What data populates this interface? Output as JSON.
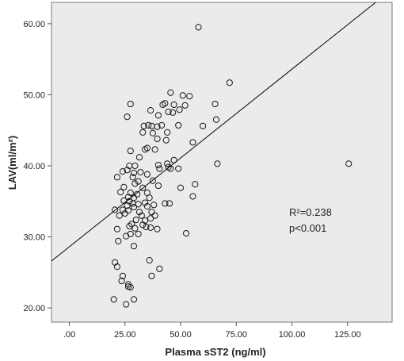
{
  "chart_data": {
    "type": "scatter",
    "xlabel": "Plasma sST2 (ng/ml)",
    "ylabel": "LAV(ml/m²)",
    "xlim": [
      -8,
      145
    ],
    "ylim": [
      18,
      63
    ],
    "x_ticks": [
      {
        "value": 0,
        "label": ".00"
      },
      {
        "value": 25,
        "label": "25.00"
      },
      {
        "value": 50,
        "label": "50.00"
      },
      {
        "value": 75,
        "label": "75.00"
      },
      {
        "value": 100,
        "label": "100.00"
      },
      {
        "value": 125,
        "label": "125.00"
      }
    ],
    "y_ticks": [
      {
        "value": 20,
        "label": "20.00"
      },
      {
        "value": 30,
        "label": "30.00"
      },
      {
        "value": 40,
        "label": "40.00"
      },
      {
        "value": 50,
        "label": "50.00"
      },
      {
        "value": 60,
        "label": "60.00"
      }
    ],
    "plot_background": "#ebebeb",
    "marker": "open-circle",
    "grid": false,
    "fit_line": {
      "intercept": 28.6,
      "slope": 0.25,
      "label": "R²=0.238",
      "p_label": "p<0.001"
    },
    "points": [
      [
        58.0,
        59.5
      ],
      [
        72.0,
        51.7
      ],
      [
        125.5,
        40.3
      ],
      [
        45.5,
        50.3
      ],
      [
        51.0,
        49.9
      ],
      [
        54.0,
        49.8
      ],
      [
        43.0,
        48.8
      ],
      [
        42.0,
        48.6
      ],
      [
        47.0,
        48.6
      ],
      [
        65.5,
        48.7
      ],
      [
        52.0,
        48.5
      ],
      [
        27.5,
        48.7
      ],
      [
        49.5,
        47.9
      ],
      [
        36.5,
        47.8
      ],
      [
        44.5,
        47.6
      ],
      [
        46.5,
        47.5
      ],
      [
        26.0,
        46.9
      ],
      [
        40.0,
        47.1
      ],
      [
        66.0,
        46.5
      ],
      [
        33.5,
        45.6
      ],
      [
        35.5,
        45.7
      ],
      [
        37.0,
        45.6
      ],
      [
        41.5,
        45.7
      ],
      [
        39.5,
        45.5
      ],
      [
        49.0,
        45.7
      ],
      [
        60.0,
        45.6
      ],
      [
        33.0,
        44.7
      ],
      [
        37.5,
        44.6
      ],
      [
        44.0,
        44.7
      ],
      [
        39.5,
        43.8
      ],
      [
        43.5,
        43.6
      ],
      [
        55.5,
        43.3
      ],
      [
        35.0,
        42.5
      ],
      [
        38.5,
        42.3
      ],
      [
        34.0,
        42.3
      ],
      [
        27.5,
        42.1
      ],
      [
        31.5,
        41.2
      ],
      [
        47.0,
        40.8
      ],
      [
        66.5,
        40.3
      ],
      [
        27.0,
        40.0
      ],
      [
        29.5,
        40.0
      ],
      [
        40.0,
        40.1
      ],
      [
        44.0,
        40.3
      ],
      [
        40.5,
        39.6
      ],
      [
        44.5,
        39.8
      ],
      [
        45.5,
        39.6
      ],
      [
        49.0,
        39.6
      ],
      [
        24.0,
        39.2
      ],
      [
        26.0,
        39.4
      ],
      [
        29.0,
        39.0
      ],
      [
        32.0,
        39.1
      ],
      [
        35.0,
        38.8
      ],
      [
        21.5,
        38.4
      ],
      [
        28.5,
        38.4
      ],
      [
        31.0,
        37.8
      ],
      [
        37.5,
        37.9
      ],
      [
        29.5,
        37.5
      ],
      [
        40.0,
        37.2
      ],
      [
        50.0,
        36.9
      ],
      [
        56.5,
        37.4
      ],
      [
        24.5,
        37.0
      ],
      [
        33.0,
        36.9
      ],
      [
        23.0,
        36.3
      ],
      [
        27.5,
        36.2
      ],
      [
        30.5,
        36.0
      ],
      [
        35.0,
        36.2
      ],
      [
        26.5,
        35.6
      ],
      [
        29.0,
        35.5
      ],
      [
        36.0,
        35.5
      ],
      [
        55.5,
        35.7
      ],
      [
        24.5,
        35.1
      ],
      [
        27.0,
        35.0
      ],
      [
        28.5,
        34.7
      ],
      [
        31.0,
        34.6
      ],
      [
        34.0,
        34.8
      ],
      [
        26.0,
        34.4
      ],
      [
        29.0,
        34.2
      ],
      [
        35.0,
        34.3
      ],
      [
        38.0,
        34.5
      ],
      [
        43.0,
        34.7
      ],
      [
        45.0,
        34.7
      ],
      [
        24.0,
        33.8
      ],
      [
        26.5,
        33.7
      ],
      [
        31.5,
        33.5
      ],
      [
        37.0,
        33.5
      ],
      [
        20.5,
        33.8
      ],
      [
        25.0,
        33.3
      ],
      [
        22.5,
        33.0
      ],
      [
        32.5,
        33.0
      ],
      [
        38.5,
        33.0
      ],
      [
        30.0,
        32.4
      ],
      [
        34.0,
        32.3
      ],
      [
        36.5,
        32.6
      ],
      [
        28.0,
        31.8
      ],
      [
        33.0,
        31.7
      ],
      [
        27.0,
        31.5
      ],
      [
        29.5,
        31.2
      ],
      [
        34.5,
        31.4
      ],
      [
        36.5,
        31.3
      ],
      [
        39.5,
        31.1
      ],
      [
        21.5,
        31.1
      ],
      [
        27.5,
        30.4
      ],
      [
        31.0,
        30.4
      ],
      [
        25.5,
        30.1
      ],
      [
        52.5,
        30.5
      ],
      [
        22.0,
        29.4
      ],
      [
        29.0,
        28.7
      ],
      [
        36.0,
        26.7
      ],
      [
        20.5,
        26.4
      ],
      [
        21.5,
        25.8
      ],
      [
        40.5,
        25.5
      ],
      [
        24.0,
        24.5
      ],
      [
        23.5,
        23.8
      ],
      [
        37.0,
        24.5
      ],
      [
        26.5,
        23.3
      ],
      [
        26.5,
        23.0
      ],
      [
        27.5,
        22.9
      ],
      [
        20.0,
        21.2
      ],
      [
        29.0,
        21.2
      ],
      [
        25.5,
        20.5
      ]
    ]
  }
}
